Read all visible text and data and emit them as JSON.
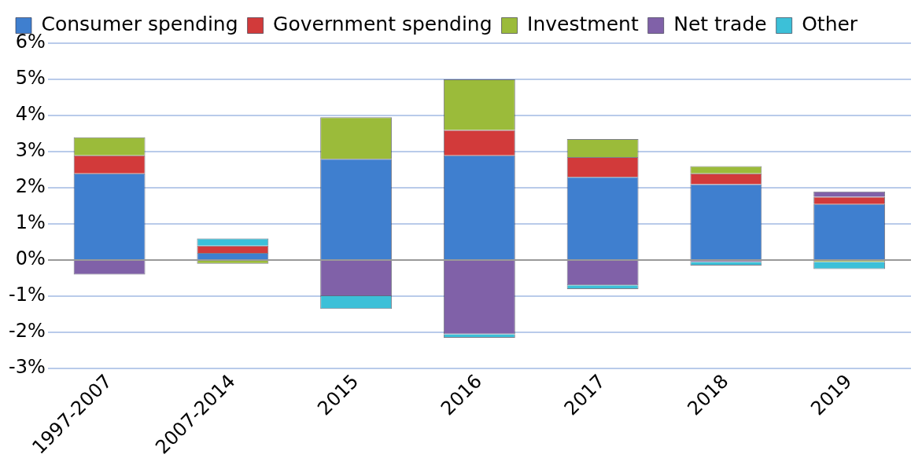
{
  "chart_data": {
    "type": "bar",
    "stacked": true,
    "categories": [
      "1997-2007",
      "2007-2014",
      "2015",
      "2016",
      "2017",
      "2018",
      "2019"
    ],
    "series": [
      {
        "name": "Consumer spending",
        "color": "#3f7fcf",
        "values": [
          2.4,
          0.2,
          2.8,
          2.9,
          2.3,
          2.1,
          1.55
        ]
      },
      {
        "name": "Government spending",
        "color": "#d23a3a",
        "values": [
          0.5,
          0.2,
          0,
          0.7,
          0.55,
          0.3,
          0.2
        ]
      },
      {
        "name": "Investment",
        "color": "#9bbb3a",
        "values": [
          0.5,
          -0.1,
          1.15,
          1.4,
          0.5,
          0.2,
          -0.05
        ]
      },
      {
        "name": "Net trade",
        "color": "#8061a8",
        "values": [
          -0.4,
          0,
          -1.0,
          -2.05,
          -0.7,
          -0.05,
          0.15
        ]
      },
      {
        "name": "Other",
        "color": "#3cc0d8",
        "values": [
          0,
          0.2,
          -0.35,
          -0.1,
          -0.1,
          -0.1,
          -0.2
        ]
      }
    ],
    "ylim": [
      -3,
      6
    ],
    "yticks": [
      {
        "value": -3,
        "label": "-3%"
      },
      {
        "value": -2,
        "label": "-2%"
      },
      {
        "value": -1,
        "label": "-1%"
      },
      {
        "value": 0,
        "label": "0%"
      },
      {
        "value": 1,
        "label": "1%"
      },
      {
        "value": 2,
        "label": "2%"
      },
      {
        "value": 3,
        "label": "3%"
      },
      {
        "value": 4,
        "label": "4%"
      },
      {
        "value": 5,
        "label": "5%"
      },
      {
        "value": 6,
        "label": "6%"
      }
    ],
    "grid": "y",
    "legend": "top left"
  }
}
